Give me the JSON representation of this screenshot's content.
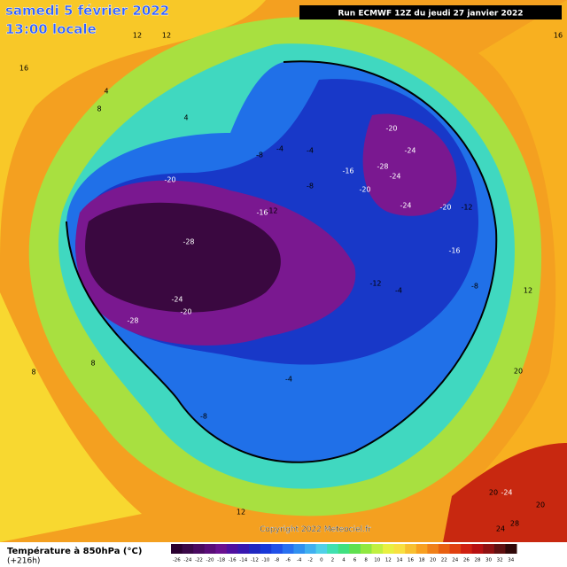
{
  "header": {
    "date": "samedi 5 février 2022",
    "time": "13:00 locale",
    "run": "Run ECMWF 12Z du jeudi 27 janvier 2022"
  },
  "copyright": "Copyright 2022 Meteociel.fr",
  "legend": {
    "title": "Température à 850hPa (°C)",
    "lead": "(+216h)",
    "ticks": [
      -26,
      -24,
      -22,
      -20,
      -18,
      -16,
      -14,
      -12,
      -10,
      -8,
      -6,
      -4,
      -2,
      0,
      2,
      4,
      6,
      8,
      10,
      12,
      14,
      16,
      18,
      20,
      22,
      24,
      26,
      28,
      30,
      32,
      34
    ],
    "colors": [
      "#2a0030",
      "#3a0848",
      "#4a0a60",
      "#5a0c78",
      "#6a1090",
      "#5010a0",
      "#3818b0",
      "#2028c0",
      "#1838d8",
      "#2050e8",
      "#2870f0",
      "#3090f0",
      "#40b0f0",
      "#50d0e8",
      "#40e0b0",
      "#40e080",
      "#60e050",
      "#90e840",
      "#c0f040",
      "#e8f040",
      "#f8e040",
      "#f8c030",
      "#f8a020",
      "#f08018",
      "#e86010",
      "#e04010",
      "#d02010",
      "#b81010",
      "#901010",
      "#601010",
      "#300808"
    ]
  },
  "contour_labels": [
    -20,
    -28,
    -24,
    -20,
    -28,
    -16,
    -12,
    -8,
    -4,
    -4,
    -8,
    -16,
    -20,
    -28,
    -20,
    -24,
    -24,
    -24,
    -20,
    -12,
    -16,
    -12,
    -4,
    -8,
    -4,
    -8,
    12,
    16,
    8,
    4,
    4,
    12,
    20,
    20,
    -24,
    28,
    24,
    20,
    12,
    8,
    8,
    16,
    12
  ]
}
